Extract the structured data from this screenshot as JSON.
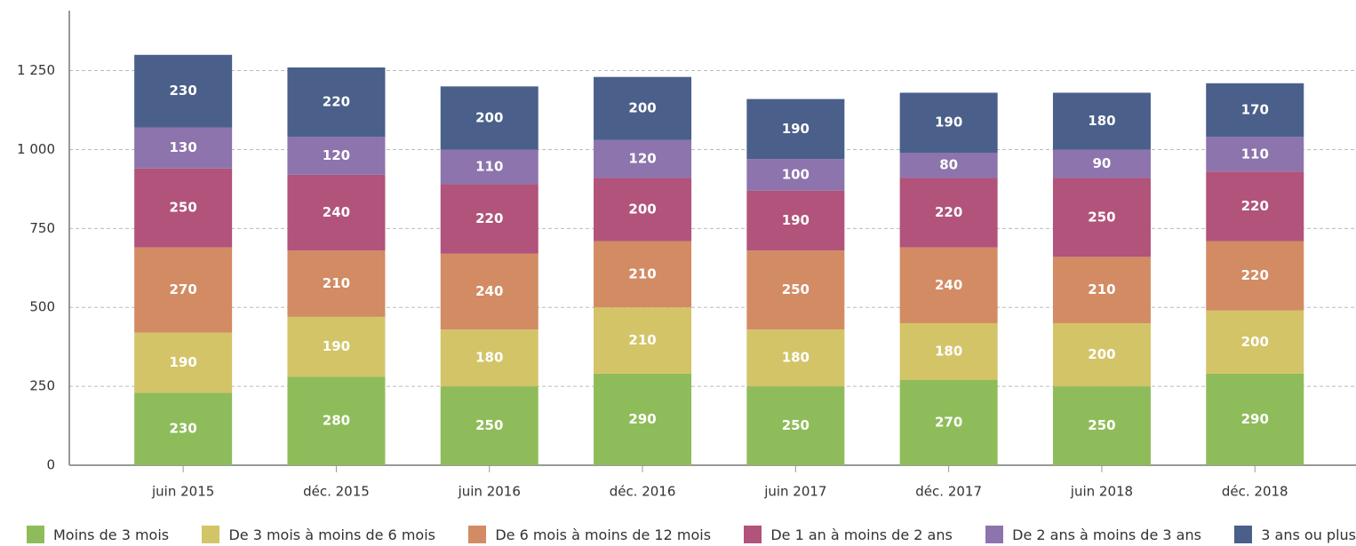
{
  "chart_data": {
    "type": "stacked_bar",
    "categories": [
      "juin 2015",
      "déc. 2015",
      "juin 2016",
      "déc. 2016",
      "juin 2017",
      "déc. 2017",
      "juin 2018",
      "déc. 2018"
    ],
    "series": [
      {
        "name": "Moins de 3 mois",
        "color": "#8fbc5a",
        "values": [
          230,
          280,
          250,
          290,
          250,
          270,
          250,
          290
        ]
      },
      {
        "name": "De 3 mois à moins de 6 mois",
        "color": "#d3c468",
        "values": [
          190,
          190,
          180,
          210,
          180,
          180,
          200,
          200
        ]
      },
      {
        "name": "De 6 mois à moins de 12 mois",
        "color": "#d38b64",
        "values": [
          270,
          210,
          240,
          210,
          250,
          240,
          210,
          220
        ]
      },
      {
        "name": "De 1 an à moins de 2 ans",
        "color": "#b1537a",
        "values": [
          250,
          240,
          220,
          200,
          190,
          220,
          250,
          220
        ]
      },
      {
        "name": "De 2 ans à moins de 3 ans",
        "color": "#8d74ad",
        "values": [
          130,
          120,
          110,
          120,
          100,
          80,
          90,
          110
        ]
      },
      {
        "name": "3 ans ou plus",
        "color": "#4a5f8a",
        "values": [
          230,
          220,
          200,
          200,
          190,
          190,
          180,
          170
        ]
      }
    ],
    "ylim": [
      0,
      1440
    ],
    "yticks": [
      0,
      250,
      500,
      750,
      {
        "value": 1000,
        "label": "1 000"
      },
      {
        "value": 1250,
        "label": "1 250"
      }
    ],
    "grid": true
  }
}
